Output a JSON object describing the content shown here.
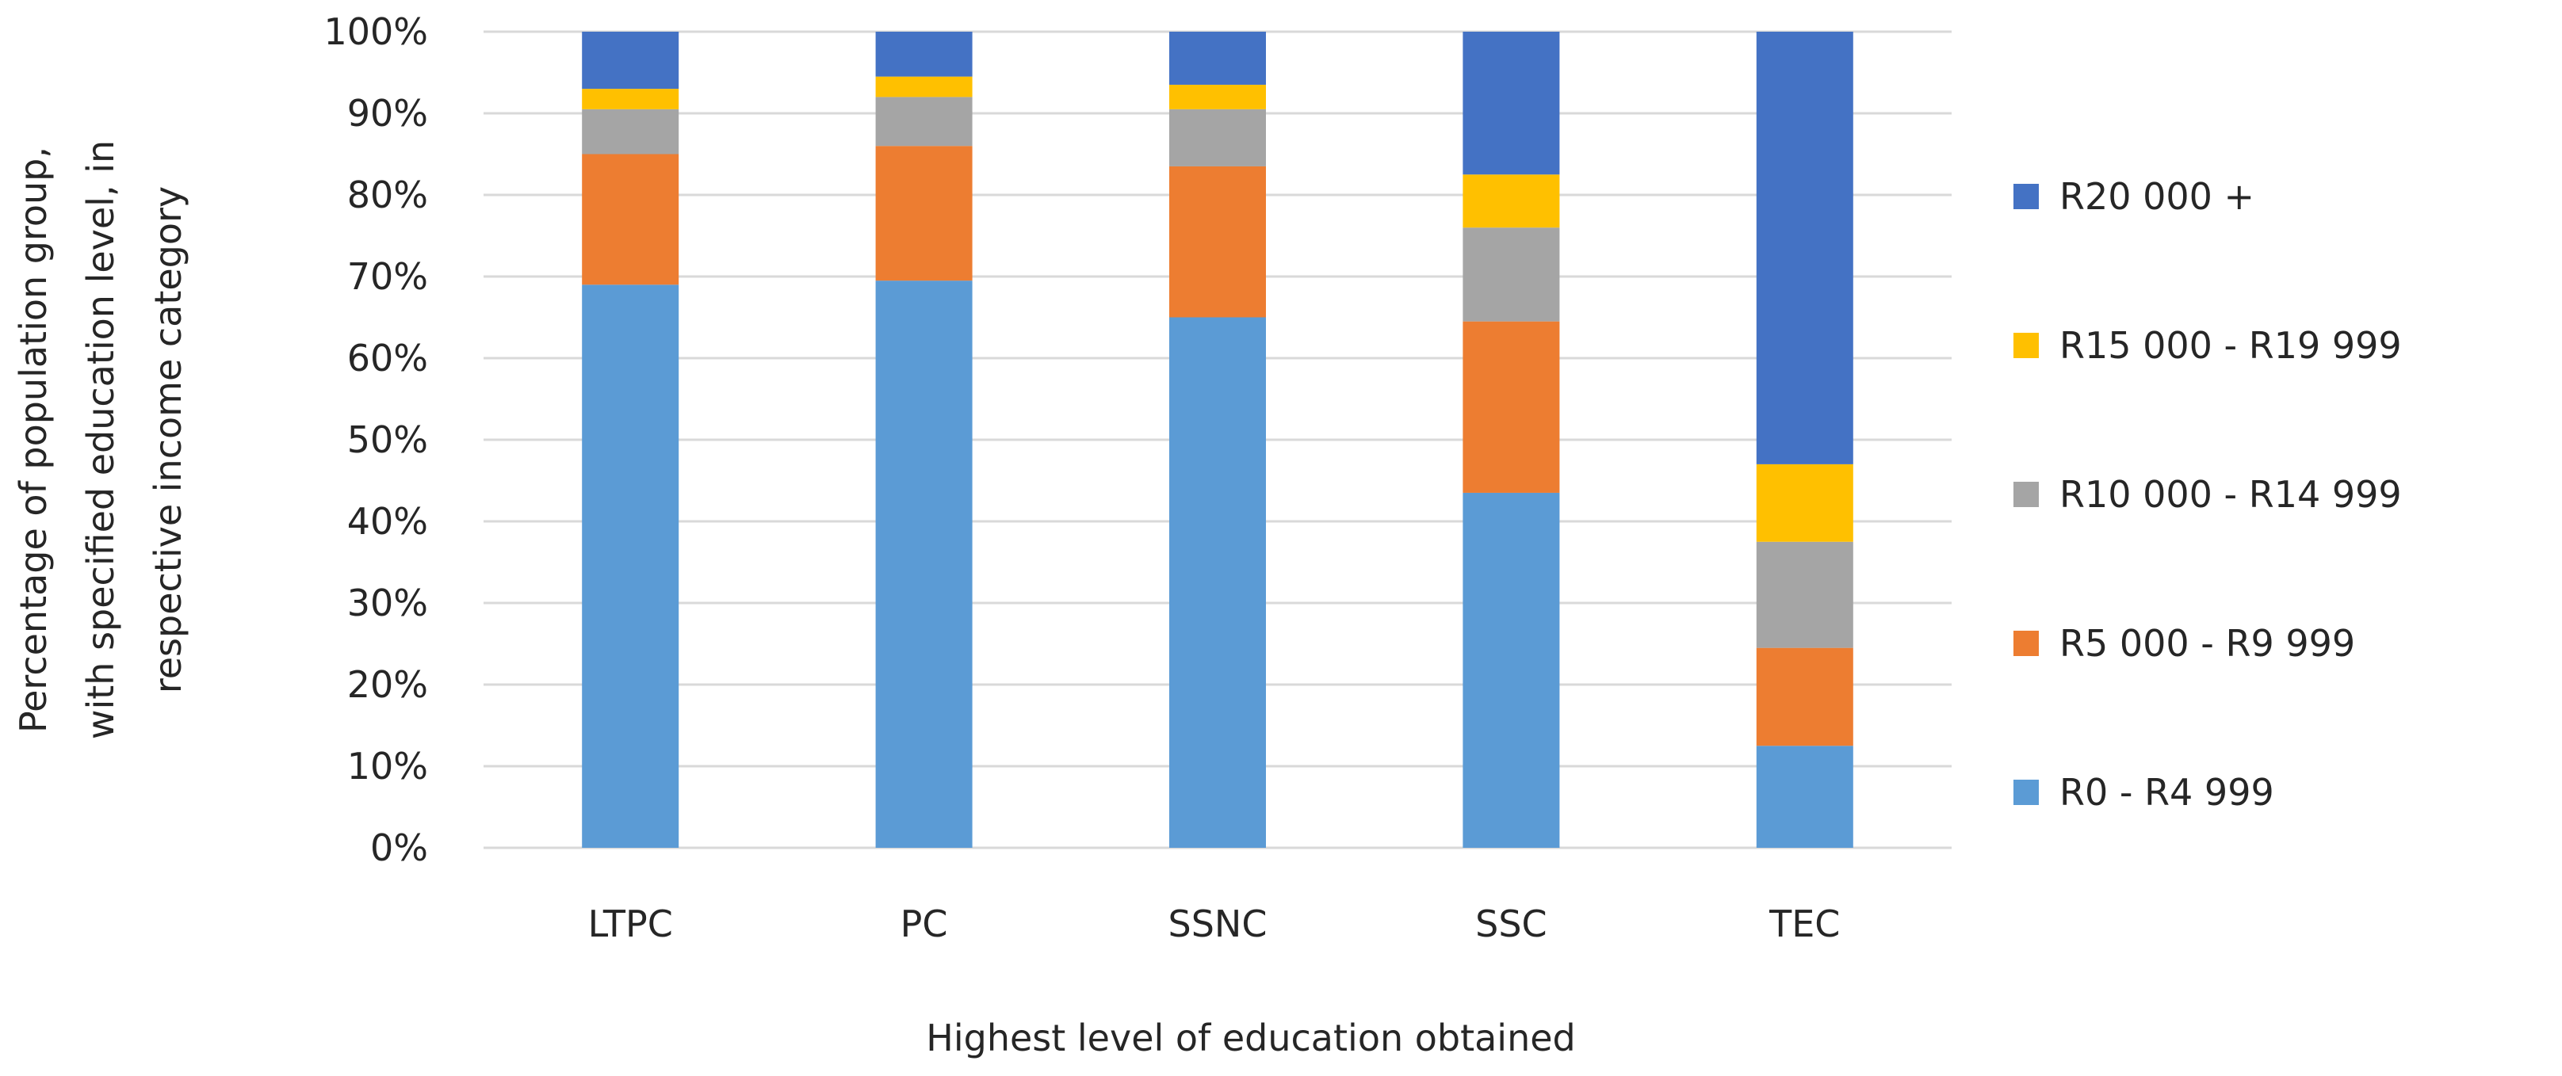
{
  "chart_data": {
    "type": "bar",
    "stacked": true,
    "normalized": true,
    "title": "",
    "xlabel": "Highest level of education obtained",
    "ylabel_lines": [
      "Percentage of population group,",
      "with specified education level, in",
      "respective income category"
    ],
    "ylim": [
      0,
      100
    ],
    "yticks": [
      "0%",
      "10%",
      "20%",
      "30%",
      "40%",
      "50%",
      "60%",
      "70%",
      "80%",
      "90%",
      "100%"
    ],
    "grid": true,
    "legend_position": "right",
    "categories": [
      "LTPC",
      "PC",
      "SSNC",
      "SSC",
      "TEC"
    ],
    "series": [
      {
        "name": "R0 - R4 999",
        "color": "#5B9BD5",
        "values": [
          69.0,
          69.5,
          65.0,
          43.5,
          12.5
        ]
      },
      {
        "name": "R5 000 - R9 999",
        "color": "#ED7D31",
        "values": [
          16.0,
          16.5,
          18.5,
          21.0,
          12.0
        ]
      },
      {
        "name": "R10 000 - R14 999",
        "color": "#A5A5A5",
        "values": [
          5.5,
          6.0,
          7.0,
          11.5,
          13.0
        ]
      },
      {
        "name": "R15 000 - R19 999",
        "color": "#FFC000",
        "values": [
          2.5,
          2.5,
          3.0,
          6.5,
          9.5
        ]
      },
      {
        "name": "R20 000 +",
        "color": "#4472C4",
        "values": [
          7.0,
          5.5,
          6.5,
          17.5,
          53.0
        ]
      }
    ]
  }
}
